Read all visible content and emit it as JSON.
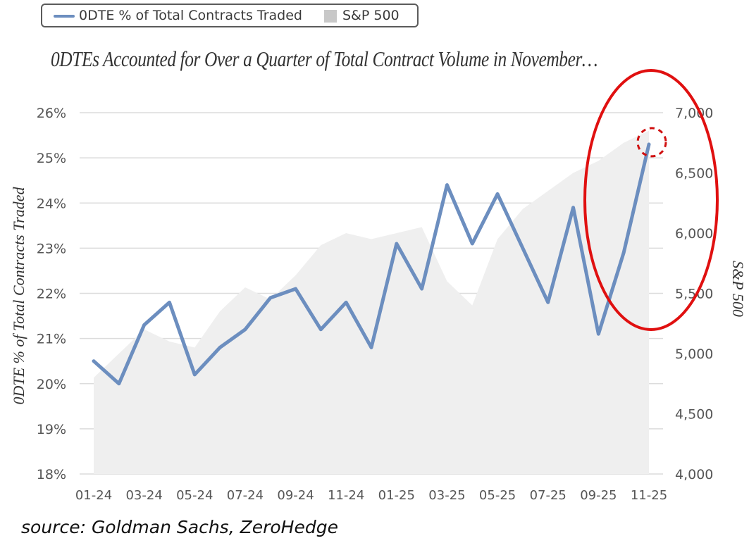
{
  "legend": {
    "series_label": "0DTE % of Total Contracts Traded",
    "sp_label": "S&P 500"
  },
  "title": "0DTEs Accounted for Over a Quarter of Total Contract Volume in November…",
  "source": "source: Goldman Sachs, ZeroHedge",
  "colors": {
    "line": "#6c8ebf",
    "area": "#efefef",
    "grid": "#dcdcdc",
    "annotation": "#e01010"
  },
  "chart_data": {
    "type": "line",
    "categories": [
      "01-24",
      "02-24",
      "03-24",
      "04-24",
      "05-24",
      "06-24",
      "07-24",
      "08-24",
      "09-24",
      "10-24",
      "11-24",
      "12-24",
      "01-25",
      "02-25",
      "03-25",
      "04-25",
      "05-25",
      "06-25",
      "07-25",
      "08-25",
      "09-25",
      "10-25",
      "11-25"
    ],
    "xtick_labels": [
      "01-24",
      "03-24",
      "05-24",
      "07-24",
      "09-24",
      "11-24",
      "01-25",
      "03-25",
      "05-25",
      "07-25",
      "09-25",
      "11-25"
    ],
    "ylabel": "0DTE % of Total Contracts Traded",
    "y2label": "S&P 500",
    "ylim": [
      18,
      26
    ],
    "yticks": [
      "18%",
      "19%",
      "20%",
      "21%",
      "22%",
      "23%",
      "24%",
      "25%",
      "26%"
    ],
    "y2lim": [
      4000,
      7000
    ],
    "y2ticks": [
      "4,000",
      "4,500",
      "5,000",
      "5,500",
      "6,000",
      "6,500",
      "7,000"
    ],
    "series": [
      {
        "name": "0DTE % of Total Contracts Traded",
        "axis": "left",
        "kind": "line",
        "values": [
          20.5,
          20.0,
          21.3,
          21.8,
          20.2,
          20.8,
          21.2,
          21.9,
          22.1,
          21.2,
          21.8,
          20.8,
          23.1,
          22.1,
          24.4,
          23.1,
          24.2,
          23.0,
          21.8,
          23.9,
          21.1,
          22.9,
          25.3
        ]
      },
      {
        "name": "S&P 500",
        "axis": "right",
        "kind": "area",
        "values": [
          4800,
          5000,
          5200,
          5100,
          5050,
          5350,
          5550,
          5450,
          5650,
          5900,
          6000,
          5950,
          6000,
          6050,
          5600,
          5400,
          5950,
          6200,
          6350,
          6500,
          6600,
          6750,
          6850
        ]
      }
    ],
    "grid": true,
    "legend_position": "top-left",
    "annotations": [
      "red ellipse around latest point",
      "red dashed circle at 11-25 value"
    ]
  }
}
